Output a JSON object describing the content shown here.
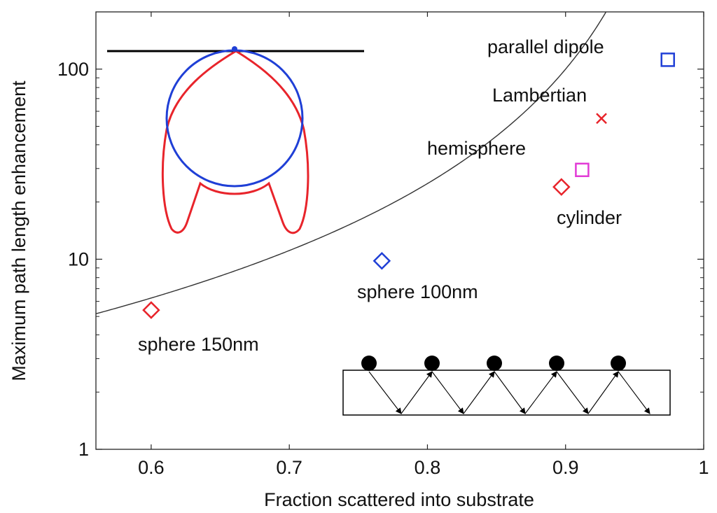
{
  "chart_data": {
    "type": "scatter",
    "title": "",
    "xlabel": "Fraction scattered into substrate",
    "ylabel": "Maximum path length enhancement",
    "xlim": [
      0.56,
      1.0
    ],
    "ylim": [
      1,
      200
    ],
    "yscale": "log",
    "x_ticks": [
      0.6,
      0.7,
      0.8,
      0.9,
      1.0
    ],
    "x_tick_labels": [
      "0.6",
      "0.7",
      "0.8",
      "0.9",
      "1"
    ],
    "y_ticks": [
      1,
      10,
      100
    ],
    "y_tick_labels": [
      "1",
      "10",
      "100"
    ],
    "grid": false,
    "curve": {
      "name": "theoretical limit",
      "formula": "1/(1-f)^2",
      "color": "#333333"
    },
    "points": [
      {
        "label": "sphere 150nm",
        "x": 0.6,
        "y": 5.4,
        "marker": "diamond",
        "color": "#e8242b"
      },
      {
        "label": "sphere 100nm",
        "x": 0.767,
        "y": 9.8,
        "marker": "diamond",
        "color": "#1f3fd6"
      },
      {
        "label": "cylinder",
        "x": 0.897,
        "y": 24.0,
        "marker": "diamond",
        "color": "#e8242b"
      },
      {
        "label": "hemisphere",
        "x": 0.912,
        "y": 29.5,
        "marker": "square",
        "color": "#e23ad6"
      },
      {
        "label": "Lambertian",
        "x": 0.926,
        "y": 55.0,
        "marker": "x",
        "color": "#e8242b"
      },
      {
        "label": "parallel dipole",
        "x": 0.974,
        "y": 112.0,
        "marker": "square",
        "color": "#1f3fd6"
      }
    ],
    "insets": [
      {
        "name": "radiation-pattern",
        "series": [
          "blue circle pattern",
          "red lobed pattern"
        ],
        "colors": [
          "#1f3fd6",
          "#e8242b"
        ]
      },
      {
        "name": "scattering-diagram",
        "particle_count": 5
      }
    ]
  }
}
